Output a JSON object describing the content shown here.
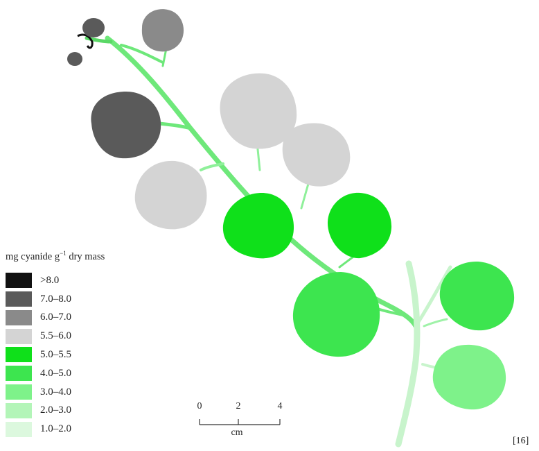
{
  "legend": {
    "title_main": "mg cyanide g",
    "title_sup": "−1",
    "title_tail": " dry mass",
    "items": [
      {
        "label": ">8.0",
        "color": "#111111"
      },
      {
        "label": "7.0–8.0",
        "color": "#5a5a5a"
      },
      {
        "label": "6.0–7.0",
        "color": "#8a8a8a"
      },
      {
        "label": "5.5–6.0",
        "color": "#d4d4d4"
      },
      {
        "label": "5.0–5.5",
        "color": "#0fe01a"
      },
      {
        "label": "4.0–5.0",
        "color": "#3de54f"
      },
      {
        "label": "3.0–4.0",
        "color": "#7ef28a"
      },
      {
        "label": "2.0–3.0",
        "color": "#b3f5b8"
      },
      {
        "label": "1.0–2.0",
        "color": "#dcf8de"
      }
    ]
  },
  "scale_bar": {
    "ticks": [
      "0",
      "2",
      "4"
    ],
    "unit": "cm"
  },
  "citation": "[16]"
}
